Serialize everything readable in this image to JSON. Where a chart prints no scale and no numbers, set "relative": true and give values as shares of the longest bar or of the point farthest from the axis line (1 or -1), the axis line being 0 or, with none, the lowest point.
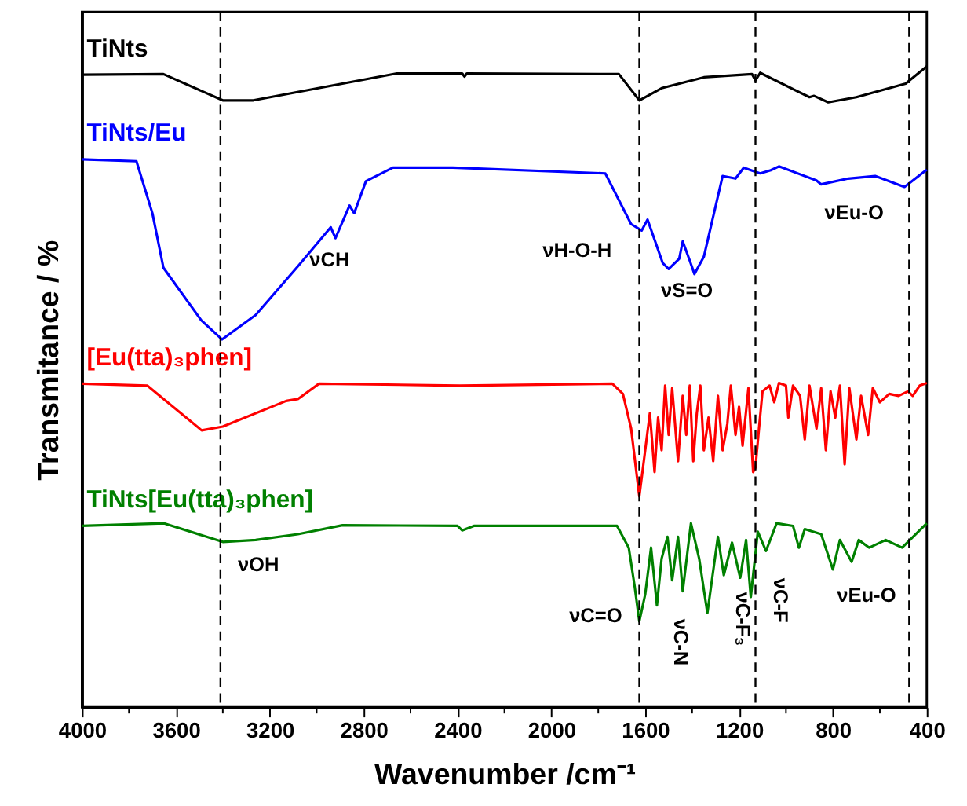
{
  "chart_data": {
    "type": "line",
    "relative": true,
    "xlabel": "Wavenumber /cm⁻¹",
    "ylabel": "Transmitance / %",
    "xlim": [
      4000,
      400
    ],
    "xticks": [
      4000,
      {
        "value": 3800,
        "label": null
      },
      3600,
      {
        "value": 3400,
        "label": null
      },
      3200,
      {
        "value": 3000,
        "label": null
      },
      2800,
      {
        "value": 2600,
        "label": null
      },
      2400,
      {
        "value": 2200,
        "label": null
      },
      2000,
      {
        "value": 1800,
        "label": null
      },
      1600,
      {
        "value": 1400,
        "label": null
      },
      1200,
      {
        "value": 1000,
        "label": null
      },
      800,
      {
        "value": 600,
        "label": null
      },
      400
    ],
    "tick_labels": "x",
    "grid": false,
    "legend": false,
    "marker": "none",
    "line_style": "solid",
    "series": [
      {
        "name": "TiNts",
        "color": "#000000",
        "x": [
          4000,
          3653,
          3400,
          3270,
          2658,
          2380,
          2370,
          2360,
          1712,
          1625,
          1530,
          1350,
          1145,
          1130,
          1110,
          900,
          880,
          820,
          700,
          490,
          400
        ],
        "values": [
          0.987,
          0.988,
          0.947,
          0.947,
          0.989,
          0.989,
          0.984,
          0.989,
          0.988,
          0.947,
          0.966,
          0.983,
          0.988,
          0.978,
          0.99,
          0.952,
          0.954,
          0.944,
          0.952,
          0.973,
          1.0
        ]
      },
      {
        "name": "TiNts/Eu",
        "color": "#0000ff",
        "x": [
          4000,
          3768,
          3700,
          3653,
          3492,
          3403,
          3260,
          3080,
          2940,
          2920,
          2860,
          2840,
          2790,
          2675,
          2420,
          1770,
          1660,
          1615,
          1590,
          1525,
          1500,
          1455,
          1440,
          1410,
          1390,
          1350,
          1270,
          1215,
          1180,
          1110,
          1065,
          1030,
          870,
          850,
          735,
          620,
          495,
          400
        ],
        "values": [
          0.855,
          0.852,
          0.771,
          0.686,
          0.604,
          0.574,
          0.612,
          0.688,
          0.749,
          0.732,
          0.783,
          0.771,
          0.821,
          0.842,
          0.842,
          0.833,
          0.754,
          0.744,
          0.761,
          0.693,
          0.684,
          0.7,
          0.727,
          0.697,
          0.676,
          0.703,
          0.829,
          0.825,
          0.842,
          0.833,
          0.838,
          0.844,
          0.822,
          0.816,
          0.825,
          0.829,
          0.812,
          0.839
        ]
      },
      {
        "name": "[Eu(tta)₃phen]",
        "color": "#ff0000",
        "x": [
          4000,
          3722,
          3490,
          3400,
          3130,
          3080,
          2990,
          2390,
          1740,
          1695,
          1660,
          1625,
          1600,
          1580,
          1560,
          1545,
          1530,
          1515,
          1500,
          1485,
          1460,
          1440,
          1425,
          1410,
          1395,
          1380,
          1365,
          1350,
          1330,
          1310,
          1290,
          1270,
          1250,
          1235,
          1215,
          1200,
          1185,
          1160,
          1140,
          1130,
          1115,
          1100,
          1070,
          1050,
          1030,
          1000,
          990,
          970,
          940,
          920,
          900,
          870,
          850,
          830,
          810,
          790,
          770,
          750,
          730,
          700,
          680,
          650,
          630,
          600,
          560,
          520,
          480,
          460,
          430,
          400
        ],
        "values": [
          0.505,
          0.502,
          0.432,
          0.438,
          0.478,
          0.481,
          0.505,
          0.502,
          0.505,
          0.489,
          0.435,
          0.329,
          0.401,
          0.459,
          0.367,
          0.452,
          0.401,
          0.502,
          0.425,
          0.498,
          0.384,
          0.486,
          0.425,
          0.502,
          0.384,
          0.459,
          0.502,
          0.401,
          0.452,
          0.384,
          0.486,
          0.401,
          0.442,
          0.502,
          0.425,
          0.469,
          0.408,
          0.498,
          0.367,
          0.374,
          0.435,
          0.493,
          0.502,
          0.476,
          0.506,
          0.502,
          0.452,
          0.502,
          0.486,
          0.418,
          0.502,
          0.435,
          0.498,
          0.401,
          0.493,
          0.452,
          0.502,
          0.379,
          0.498,
          0.418,
          0.486,
          0.425,
          0.498,
          0.476,
          0.489,
          0.486,
          0.493,
          0.486,
          0.502,
          0.506
        ]
      },
      {
        "name": "TiNts[Eu(tta)₃phen]",
        "color": "#008000",
        "x": [
          4000,
          3650,
          3400,
          3260,
          3080,
          2890,
          2400,
          2380,
          2330,
          1720,
          1670,
          1645,
          1625,
          1600,
          1575,
          1550,
          1530,
          1505,
          1485,
          1460,
          1440,
          1405,
          1370,
          1335,
          1290,
          1265,
          1230,
          1195,
          1170,
          1150,
          1120,
          1085,
          1040,
          970,
          945,
          920,
          850,
          800,
          770,
          720,
          690,
          645,
          575,
          505,
          400
        ],
        "values": [
          0.283,
          0.287,
          0.258,
          0.261,
          0.27,
          0.284,
          0.283,
          0.276,
          0.283,
          0.283,
          0.249,
          0.189,
          0.134,
          0.176,
          0.249,
          0.159,
          0.232,
          0.266,
          0.198,
          0.266,
          0.181,
          0.287,
          0.232,
          0.147,
          0.266,
          0.206,
          0.257,
          0.202,
          0.261,
          0.172,
          0.274,
          0.244,
          0.287,
          0.283,
          0.249,
          0.278,
          0.27,
          0.215,
          0.261,
          0.227,
          0.261,
          0.249,
          0.261,
          0.249,
          0.287
        ]
      }
    ],
    "ref_lines": [
      {
        "axis": "x",
        "value": 3410,
        "color": "#000000",
        "line_style": "dashed"
      },
      {
        "axis": "x",
        "value": 1625,
        "color": "#000000",
        "line_style": "dashed"
      },
      {
        "axis": "x",
        "value": 1130,
        "color": "#000000",
        "line_style": "dashed"
      },
      {
        "axis": "x",
        "value": 475,
        "color": "#000000",
        "line_style": "dashed"
      }
    ],
    "annotations": [
      "νCH",
      "νH-O-H",
      "νS=O",
      "νEu-O",
      "νOH",
      "νC=O",
      "νC-N",
      "νC-F₃",
      "νC-F",
      "νEu-O"
    ]
  }
}
